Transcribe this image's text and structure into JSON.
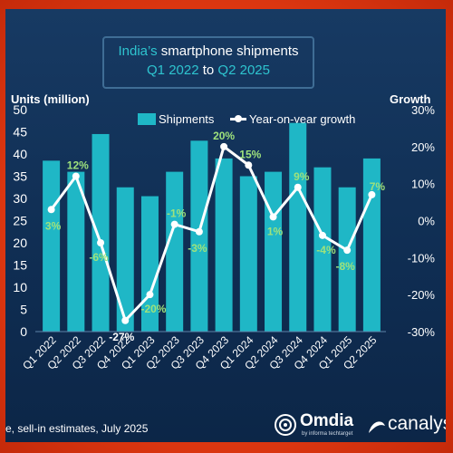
{
  "title": {
    "line1_prefix": "India’s",
    "line1_rest": " smartphone shipments",
    "line2_start": "Q1 2022",
    "line2_mid": " to ",
    "line2_end": "Q2 2025"
  },
  "footer": "e, sell-in estimates, July 2025",
  "brands": {
    "omdia": "Omdia",
    "omdia_sub": "by informa techtarget",
    "canalys": "canalys"
  },
  "colors": {
    "bar": "#1fb7c6",
    "line": "#ffffff",
    "label_green": "#9ee27c",
    "accent": "#2ec4cf"
  },
  "chart_data": {
    "type": "bar+line",
    "categories": [
      "Q1 2022",
      "Q2 2022",
      "Q3 2022",
      "Q4 2022",
      "Q1 2023",
      "Q2 2023",
      "Q3 2023",
      "Q4 2023",
      "Q1 2024",
      "Q2 2024",
      "Q3 2024",
      "Q4 2024",
      "Q1 2025",
      "Q2 2025"
    ],
    "left_axis": {
      "title": "Units (million)",
      "ylim": [
        0,
        50
      ],
      "ticks": [
        "0",
        "5",
        "10",
        "15",
        "20",
        "25",
        "30",
        "35",
        "40",
        "45",
        "50"
      ]
    },
    "right_axis": {
      "title": "Growth",
      "ylim": [
        -30,
        30
      ],
      "ticks": [
        "-30%",
        "-20%",
        "-10%",
        "0%",
        "10%",
        "20%",
        "30%"
      ]
    },
    "legend": {
      "bars": "Shipments",
      "line": "Year-on-year growth",
      "placement": "top"
    },
    "series": [
      {
        "name": "Shipments",
        "axis": "left",
        "values": [
          38.5,
          36,
          44.5,
          32.5,
          30.5,
          36,
          43,
          39,
          35,
          36,
          47,
          37,
          32.5,
          39
        ]
      },
      {
        "name": "Year-on-year growth",
        "axis": "right",
        "values": [
          3,
          12,
          -6,
          -27,
          -20,
          -1,
          -3,
          20,
          15,
          1,
          9,
          -4,
          -8,
          7
        ],
        "labels": [
          "3%",
          "12%",
          "-6%",
          "-27%",
          "-20%",
          "-1%",
          "-3%",
          "20%",
          "15%",
          "1%",
          "9%",
          "-4%",
          "-8%",
          "7%"
        ]
      }
    ],
    "grid": false
  }
}
